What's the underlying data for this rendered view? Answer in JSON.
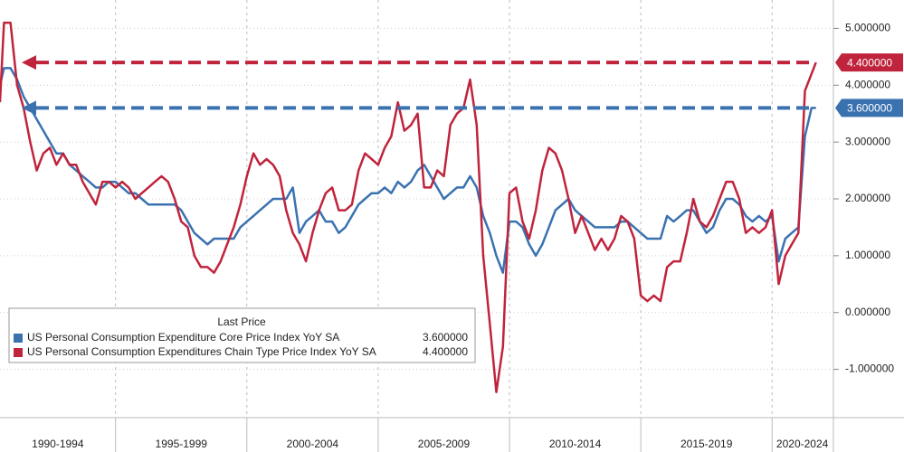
{
  "chart_data": {
    "type": "line",
    "x": [
      1990.6,
      1990.75,
      1991,
      1991.25,
      1991.5,
      1991.75,
      1992,
      1992.25,
      1992.5,
      1992.75,
      1993,
      1993.25,
      1993.5,
      1993.75,
      1994,
      1994.25,
      1994.5,
      1994.75,
      1995,
      1995.25,
      1995.5,
      1995.75,
      1996,
      1996.25,
      1996.5,
      1996.75,
      1997,
      1997.25,
      1997.5,
      1997.75,
      1998,
      1998.25,
      1998.5,
      1998.75,
      1999,
      1999.25,
      1999.5,
      1999.75,
      2000,
      2000.25,
      2000.5,
      2000.75,
      2001,
      2001.25,
      2001.5,
      2001.75,
      2002,
      2002.25,
      2002.5,
      2002.75,
      2003,
      2003.25,
      2003.5,
      2003.75,
      2004,
      2004.25,
      2004.5,
      2004.75,
      2005,
      2005.25,
      2005.5,
      2005.75,
      2006,
      2006.25,
      2006.5,
      2006.75,
      2007,
      2007.25,
      2007.5,
      2007.75,
      2008,
      2008.25,
      2008.5,
      2008.75,
      2009,
      2009.25,
      2009.5,
      2009.75,
      2010,
      2010.25,
      2010.5,
      2010.75,
      2011,
      2011.25,
      2011.5,
      2011.75,
      2012,
      2012.25,
      2012.5,
      2012.75,
      2013,
      2013.25,
      2013.5,
      2013.75,
      2014,
      2014.25,
      2014.5,
      2014.75,
      2015,
      2015.25,
      2015.5,
      2015.75,
      2016,
      2016.25,
      2016.5,
      2016.75,
      2017,
      2017.25,
      2017.5,
      2017.75,
      2018,
      2018.25,
      2018.5,
      2018.75,
      2019,
      2019.25,
      2019.5,
      2019.75,
      2020,
      2020.25,
      2020.5,
      2020.75,
      2021,
      2021.25,
      2021.5,
      2021.67
    ],
    "series": [
      {
        "name": "US Personal Consumption Expenditure Core Price Index YoY SA",
        "color": "#3a72b0",
        "last_value": 3.6,
        "last_label": "3.600000",
        "values": [
          4.0,
          4.3,
          4.3,
          4.1,
          3.8,
          3.6,
          3.4,
          3.2,
          3.0,
          2.8,
          2.8,
          2.6,
          2.5,
          2.4,
          2.3,
          2.2,
          2.2,
          2.3,
          2.3,
          2.2,
          2.1,
          2.1,
          2.0,
          1.9,
          1.9,
          1.9,
          1.9,
          1.9,
          1.8,
          1.6,
          1.4,
          1.3,
          1.2,
          1.3,
          1.3,
          1.3,
          1.3,
          1.5,
          1.6,
          1.7,
          1.8,
          1.9,
          2.0,
          2.0,
          2.0,
          2.2,
          1.4,
          1.6,
          1.7,
          1.8,
          1.6,
          1.6,
          1.4,
          1.5,
          1.7,
          1.9,
          2.0,
          2.1,
          2.1,
          2.2,
          2.1,
          2.3,
          2.2,
          2.3,
          2.5,
          2.6,
          2.4,
          2.2,
          2.0,
          2.1,
          2.2,
          2.2,
          2.4,
          2.2,
          1.7,
          1.4,
          1.0,
          0.7,
          1.6,
          1.6,
          1.5,
          1.2,
          1.0,
          1.2,
          1.5,
          1.8,
          1.9,
          2.0,
          1.8,
          1.7,
          1.6,
          1.5,
          1.5,
          1.5,
          1.5,
          1.6,
          1.6,
          1.5,
          1.4,
          1.3,
          1.3,
          1.3,
          1.7,
          1.6,
          1.7,
          1.8,
          1.8,
          1.6,
          1.4,
          1.5,
          1.8,
          2.0,
          2.0,
          1.9,
          1.7,
          1.6,
          1.7,
          1.6,
          1.7,
          0.9,
          1.3,
          1.4,
          1.5,
          3.1,
          3.6,
          3.6
        ]
      },
      {
        "name": "US Personal Consumption Expenditures Chain Type Price Index YoY SA",
        "color": "#c0243c",
        "last_value": 4.4,
        "last_label": "4.400000",
        "values": [
          3.7,
          5.1,
          5.1,
          4.0,
          3.6,
          3.0,
          2.5,
          2.8,
          2.9,
          2.6,
          2.8,
          2.6,
          2.6,
          2.3,
          2.1,
          1.9,
          2.3,
          2.3,
          2.2,
          2.3,
          2.2,
          2.0,
          2.1,
          2.2,
          2.3,
          2.4,
          2.3,
          2.0,
          1.6,
          1.5,
          1.0,
          0.8,
          0.8,
          0.7,
          0.9,
          1.2,
          1.5,
          1.9,
          2.4,
          2.8,
          2.6,
          2.7,
          2.6,
          2.4,
          1.8,
          1.4,
          1.2,
          0.9,
          1.4,
          1.8,
          2.1,
          2.2,
          1.8,
          1.8,
          1.9,
          2.5,
          2.8,
          2.7,
          2.6,
          2.9,
          3.1,
          3.7,
          3.2,
          3.3,
          3.5,
          2.2,
          2.2,
          2.5,
          2.4,
          3.3,
          3.5,
          3.6,
          4.1,
          3.3,
          1.0,
          -0.2,
          -1.4,
          -0.6,
          2.1,
          2.2,
          1.6,
          1.3,
          1.8,
          2.5,
          2.9,
          2.8,
          2.5,
          2.0,
          1.4,
          1.7,
          1.4,
          1.1,
          1.3,
          1.1,
          1.3,
          1.7,
          1.6,
          1.3,
          0.3,
          0.2,
          0.3,
          0.2,
          0.8,
          0.9,
          0.9,
          1.4,
          2.0,
          1.6,
          1.5,
          1.7,
          2.0,
          2.3,
          2.3,
          2.0,
          1.4,
          1.5,
          1.4,
          1.5,
          1.8,
          0.5,
          1.0,
          1.2,
          1.4,
          3.9,
          4.2,
          4.4
        ]
      }
    ],
    "legend_title": "Last Price",
    "xlim": [
      1990.6,
      2022.3
    ],
    "xticks": [
      1995,
      2000,
      2005,
      2010,
      2015,
      2020
    ],
    "x_band_labels": [
      "1990-1994",
      "1995-1999",
      "2000-2004",
      "2005-2009",
      "2010-2014",
      "2015-2019",
      "2020-2024"
    ],
    "ylim": [
      -1.85,
      5.5
    ],
    "yticks": [
      {
        "value": -1,
        "label": "-1.000000"
      },
      {
        "value": 0,
        "label": "0.000000"
      },
      {
        "value": 1,
        "label": "1.000000"
      },
      {
        "value": 2,
        "label": "2.000000"
      },
      {
        "value": 3,
        "label": "3.000000"
      },
      {
        "value": 4,
        "label": "4.000000"
      },
      {
        "value": 5,
        "label": "5.000000"
      }
    ],
    "grid": true
  }
}
